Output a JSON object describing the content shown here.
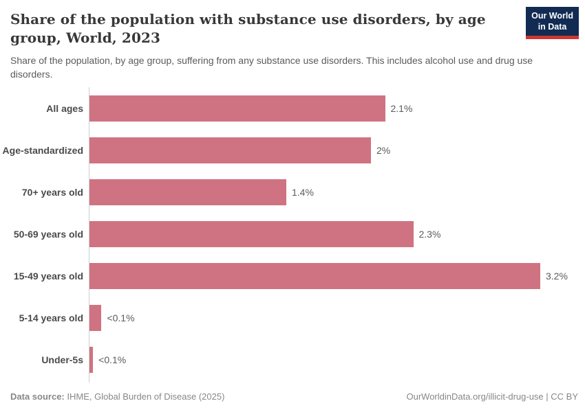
{
  "header": {
    "title": "Share of the population with substance use disorders, by age group, World, 2023",
    "subtitle": "Share of the population, by age group, suffering from any substance use disorders. This includes alcohol use and drug use disorders.",
    "logo": {
      "line1": "Our World",
      "line2": "in Data"
    }
  },
  "chart_data": {
    "type": "bar",
    "orientation": "horizontal",
    "title": "Share of the population with substance use disorders, by age group, World, 2023",
    "categories": [
      "All ages",
      "Age-standardized",
      "70+ years old",
      "50-69 years old",
      "15-49 years old",
      "5-14 years old",
      "Under-5s"
    ],
    "values": [
      2.1,
      2,
      1.4,
      2.3,
      3.2,
      0.09,
      0.03
    ],
    "value_labels": [
      "2.1%",
      "2%",
      "1.4%",
      "2.3%",
      "3.2%",
      "<0.1%",
      "<0.1%"
    ],
    "unit": "%",
    "xlim": [
      0,
      3.2
    ],
    "grid": false,
    "legend": "none",
    "bar_color": "#cf7383"
  },
  "footer": {
    "datasource_label": "Data source:",
    "datasource_value": " IHME, Global Burden of Disease (2025)",
    "link": "OurWorldinData.org/illicit-drug-use | CC BY"
  },
  "colors": {
    "bar": "#cf7383",
    "logo_background": "#122b52",
    "logo_stripe": "#d2352b",
    "axis_line": "#cfcfcf",
    "title_text": "#383838",
    "body_text": "#5b5b5b",
    "footer_text": "#878787"
  }
}
